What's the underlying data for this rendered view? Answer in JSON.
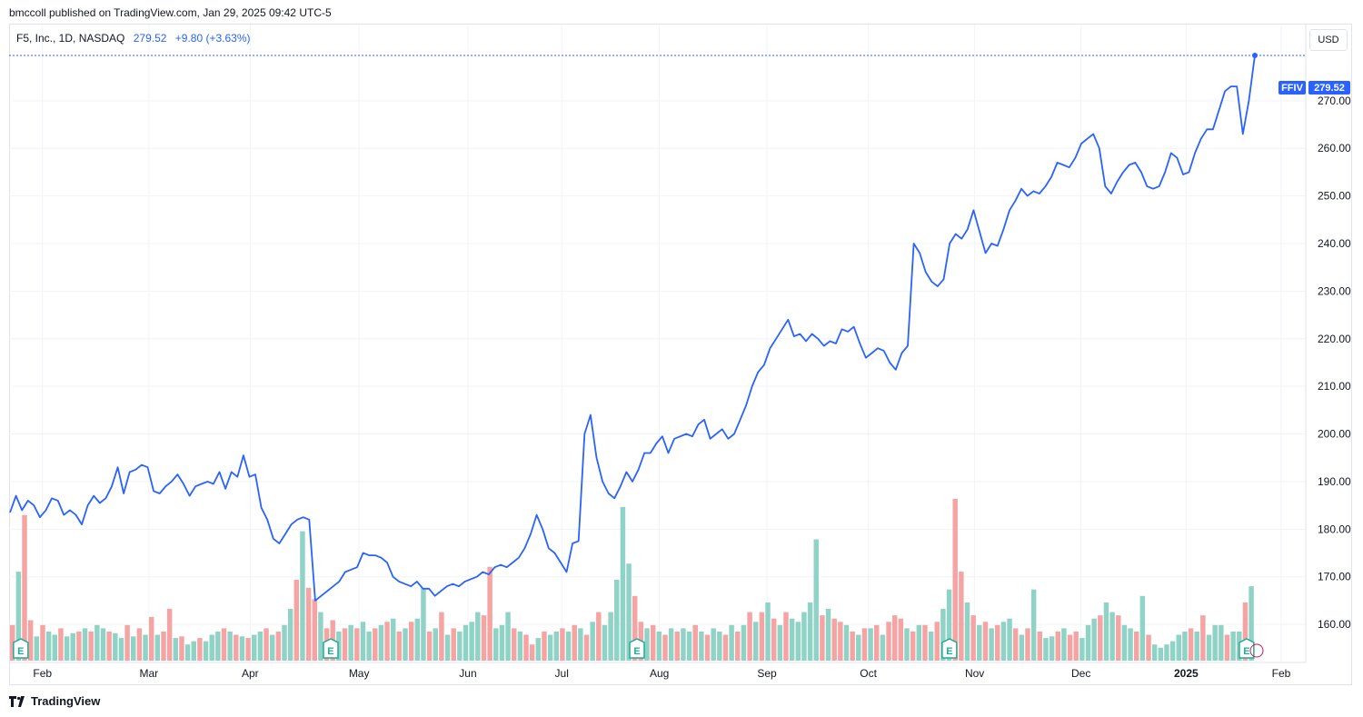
{
  "header": {
    "published": "bmccoll published on TradingView.com, Jan 29, 2025 09:42 UTC-5"
  },
  "legend": {
    "symbol_info": "F5, Inc., 1D, NASDAQ",
    "price": "279.52",
    "change": "+9.80 (+3.63%)"
  },
  "currency_button": "USD",
  "price_label": {
    "ticker": "FFIV",
    "value": "279.52"
  },
  "footer": {
    "brand": "TradingView"
  },
  "earnings_marker": "E",
  "colors": {
    "line": "#2962ff",
    "volume_up": "#8fd3c6",
    "volume_down": "#f5a3a3",
    "grid": "#f0f3fa",
    "earnings": "#22ab94"
  },
  "chart_data": {
    "type": "line",
    "title": "F5, Inc., 1D, NASDAQ",
    "series": [
      {
        "name": "FFIV",
        "values": [
          183.5,
          187,
          184,
          186,
          185,
          182.5,
          184,
          186.5,
          186,
          183,
          184,
          183,
          181,
          185,
          187,
          185.5,
          186.5,
          189,
          193,
          187.5,
          192,
          192.5,
          193.5,
          193,
          188,
          187.5,
          189,
          190,
          191.5,
          189.5,
          187,
          189,
          189.5,
          190,
          189.5,
          192,
          188.5,
          192,
          191,
          195.5,
          191,
          191.5,
          184.5,
          182,
          178,
          177,
          179,
          181,
          182,
          182.5,
          182,
          165,
          166,
          167,
          168,
          169,
          171,
          171.5,
          172,
          175,
          174.5,
          174.5,
          174,
          173,
          170,
          169,
          168.5,
          168,
          169,
          167.5,
          167.5,
          166,
          167,
          168,
          168.5,
          168,
          169,
          169.5,
          170,
          171,
          170.5,
          172,
          172.5,
          172,
          173,
          174,
          176,
          179,
          183,
          180,
          176,
          175,
          173,
          171,
          177,
          177.5,
          200,
          204,
          195,
          190,
          187.5,
          186.5,
          189,
          192,
          190,
          192.5,
          196,
          196,
          198,
          199.5,
          196,
          199,
          199.5,
          200,
          199.5,
          202,
          203,
          199,
          200,
          201,
          199,
          200,
          203,
          206,
          210,
          213,
          214.5,
          218,
          220,
          222,
          224,
          220.5,
          221,
          219.5,
          221,
          220,
          218.5,
          219.5,
          219,
          222,
          221.5,
          222.5,
          219,
          216,
          217,
          218,
          217.5,
          215,
          213.5,
          217,
          218.5,
          240,
          238,
          234,
          232,
          231,
          232.5,
          240,
          242,
          241,
          243,
          247,
          242.5,
          238,
          240,
          239.5,
          243,
          247,
          249,
          251.5,
          250,
          251,
          250.5,
          252,
          254,
          257,
          256.5,
          256,
          258,
          261,
          262,
          263,
          260,
          252,
          250.5,
          253,
          255,
          256.5,
          257,
          255,
          252,
          251.5,
          252,
          255,
          259,
          258,
          254.5,
          255,
          259,
          262,
          264,
          264,
          268,
          272,
          273,
          273,
          263,
          270,
          279.52
        ]
      }
    ],
    "volume_bars": [
      {
        "v": 0.22,
        "up": false
      },
      {
        "v": 0.55,
        "up": true
      },
      {
        "v": 0.9,
        "up": false
      },
      {
        "v": 0.25,
        "up": false
      },
      {
        "v": 0.15,
        "up": true
      },
      {
        "v": 0.22,
        "up": false
      },
      {
        "v": 0.18,
        "up": true
      },
      {
        "v": 0.16,
        "up": true
      },
      {
        "v": 0.2,
        "up": false
      },
      {
        "v": 0.15,
        "up": true
      },
      {
        "v": 0.17,
        "up": true
      },
      {
        "v": 0.18,
        "up": false
      },
      {
        "v": 0.2,
        "up": true
      },
      {
        "v": 0.18,
        "up": false
      },
      {
        "v": 0.22,
        "up": true
      },
      {
        "v": 0.2,
        "up": true
      },
      {
        "v": 0.18,
        "up": false
      },
      {
        "v": 0.17,
        "up": true
      },
      {
        "v": 0.14,
        "up": true
      },
      {
        "v": 0.22,
        "up": false
      },
      {
        "v": 0.15,
        "up": true
      },
      {
        "v": 0.2,
        "up": false
      },
      {
        "v": 0.16,
        "up": true
      },
      {
        "v": 0.27,
        "up": false
      },
      {
        "v": 0.16,
        "up": true
      },
      {
        "v": 0.18,
        "up": false
      },
      {
        "v": 0.32,
        "up": false
      },
      {
        "v": 0.14,
        "up": true
      },
      {
        "v": 0.15,
        "up": false
      },
      {
        "v": 0.1,
        "up": true
      },
      {
        "v": 0.12,
        "up": true
      },
      {
        "v": 0.14,
        "up": false
      },
      {
        "v": 0.12,
        "up": true
      },
      {
        "v": 0.16,
        "up": true
      },
      {
        "v": 0.18,
        "up": true
      },
      {
        "v": 0.2,
        "up": false
      },
      {
        "v": 0.18,
        "up": true
      },
      {
        "v": 0.16,
        "up": false
      },
      {
        "v": 0.15,
        "up": true
      },
      {
        "v": 0.14,
        "up": false
      },
      {
        "v": 0.16,
        "up": true
      },
      {
        "v": 0.18,
        "up": true
      },
      {
        "v": 0.2,
        "up": false
      },
      {
        "v": 0.16,
        "up": true
      },
      {
        "v": 0.18,
        "up": false
      },
      {
        "v": 0.22,
        "up": true
      },
      {
        "v": 0.32,
        "up": true
      },
      {
        "v": 0.5,
        "up": false
      },
      {
        "v": 0.8,
        "up": true
      },
      {
        "v": 0.45,
        "up": false
      },
      {
        "v": 0.38,
        "up": false
      },
      {
        "v": 0.3,
        "up": true
      },
      {
        "v": 0.2,
        "up": false
      },
      {
        "v": 0.25,
        "up": false
      },
      {
        "v": 0.18,
        "up": true
      },
      {
        "v": 0.2,
        "up": false
      },
      {
        "v": 0.22,
        "up": true
      },
      {
        "v": 0.2,
        "up": false
      },
      {
        "v": 0.24,
        "up": true
      },
      {
        "v": 0.18,
        "up": true
      },
      {
        "v": 0.2,
        "up": false
      },
      {
        "v": 0.22,
        "up": true
      },
      {
        "v": 0.24,
        "up": false
      },
      {
        "v": 0.26,
        "up": true
      },
      {
        "v": 0.18,
        "up": false
      },
      {
        "v": 0.2,
        "up": true
      },
      {
        "v": 0.24,
        "up": false
      },
      {
        "v": 0.26,
        "up": true
      },
      {
        "v": 0.45,
        "up": true
      },
      {
        "v": 0.18,
        "up": false
      },
      {
        "v": 0.2,
        "up": true
      },
      {
        "v": 0.3,
        "up": false
      },
      {
        "v": 0.16,
        "up": true
      },
      {
        "v": 0.2,
        "up": false
      },
      {
        "v": 0.18,
        "up": true
      },
      {
        "v": 0.22,
        "up": true
      },
      {
        "v": 0.24,
        "up": true
      },
      {
        "v": 0.3,
        "up": true
      },
      {
        "v": 0.28,
        "up": false
      },
      {
        "v": 0.58,
        "up": false
      },
      {
        "v": 0.2,
        "up": true
      },
      {
        "v": 0.22,
        "up": true
      },
      {
        "v": 0.3,
        "up": true
      },
      {
        "v": 0.2,
        "up": false
      },
      {
        "v": 0.18,
        "up": true
      },
      {
        "v": 0.16,
        "up": false
      },
      {
        "v": 0.1,
        "up": false
      },
      {
        "v": 0.14,
        "up": true
      },
      {
        "v": 0.18,
        "up": false
      },
      {
        "v": 0.16,
        "up": true
      },
      {
        "v": 0.18,
        "up": true
      },
      {
        "v": 0.2,
        "up": false
      },
      {
        "v": 0.18,
        "up": true
      },
      {
        "v": 0.22,
        "up": false
      },
      {
        "v": 0.2,
        "up": true
      },
      {
        "v": 0.16,
        "up": false
      },
      {
        "v": 0.24,
        "up": true
      },
      {
        "v": 0.3,
        "up": false
      },
      {
        "v": 0.22,
        "up": true
      },
      {
        "v": 0.3,
        "up": true
      },
      {
        "v": 0.5,
        "up": true
      },
      {
        "v": 0.95,
        "up": true
      },
      {
        "v": 0.6,
        "up": true
      },
      {
        "v": 0.4,
        "up": false
      },
      {
        "v": 0.24,
        "up": false
      },
      {
        "v": 0.2,
        "up": true
      },
      {
        "v": 0.22,
        "up": false
      },
      {
        "v": 0.18,
        "up": true
      },
      {
        "v": 0.16,
        "up": false
      },
      {
        "v": 0.2,
        "up": true
      },
      {
        "v": 0.18,
        "up": false
      },
      {
        "v": 0.2,
        "up": true
      },
      {
        "v": 0.18,
        "up": true
      },
      {
        "v": 0.22,
        "up": false
      },
      {
        "v": 0.18,
        "up": true
      },
      {
        "v": 0.16,
        "up": false
      },
      {
        "v": 0.2,
        "up": true
      },
      {
        "v": 0.18,
        "up": true
      },
      {
        "v": 0.16,
        "up": false
      },
      {
        "v": 0.22,
        "up": true
      },
      {
        "v": 0.18,
        "up": false
      },
      {
        "v": 0.22,
        "up": true
      },
      {
        "v": 0.3,
        "up": false
      },
      {
        "v": 0.24,
        "up": true
      },
      {
        "v": 0.3,
        "up": false
      },
      {
        "v": 0.36,
        "up": true
      },
      {
        "v": 0.26,
        "up": false
      },
      {
        "v": 0.22,
        "up": true
      },
      {
        "v": 0.3,
        "up": false
      },
      {
        "v": 0.26,
        "up": true
      },
      {
        "v": 0.24,
        "up": true
      },
      {
        "v": 0.3,
        "up": true
      },
      {
        "v": 0.36,
        "up": true
      },
      {
        "v": 0.75,
        "up": true
      },
      {
        "v": 0.28,
        "up": false
      },
      {
        "v": 0.32,
        "up": true
      },
      {
        "v": 0.26,
        "up": false
      },
      {
        "v": 0.24,
        "up": false
      },
      {
        "v": 0.22,
        "up": true
      },
      {
        "v": 0.18,
        "up": false
      },
      {
        "v": 0.16,
        "up": true
      },
      {
        "v": 0.2,
        "up": false
      },
      {
        "v": 0.2,
        "up": true
      },
      {
        "v": 0.22,
        "up": false
      },
      {
        "v": 0.16,
        "up": true
      },
      {
        "v": 0.24,
        "up": false
      },
      {
        "v": 0.28,
        "up": false
      },
      {
        "v": 0.26,
        "up": false
      },
      {
        "v": 0.2,
        "up": true
      },
      {
        "v": 0.18,
        "up": false
      },
      {
        "v": 0.22,
        "up": true
      },
      {
        "v": 0.22,
        "up": false
      },
      {
        "v": 0.18,
        "up": true
      },
      {
        "v": 0.24,
        "up": false
      },
      {
        "v": 0.32,
        "up": true
      },
      {
        "v": 0.44,
        "up": true
      },
      {
        "v": 1.0,
        "up": false
      },
      {
        "v": 0.55,
        "up": false
      },
      {
        "v": 0.36,
        "up": true
      },
      {
        "v": 0.28,
        "up": false
      },
      {
        "v": 0.22,
        "up": true
      },
      {
        "v": 0.24,
        "up": false
      },
      {
        "v": 0.2,
        "up": true
      },
      {
        "v": 0.22,
        "up": false
      },
      {
        "v": 0.24,
        "up": true
      },
      {
        "v": 0.26,
        "up": true
      },
      {
        "v": 0.2,
        "up": false
      },
      {
        "v": 0.16,
        "up": true
      },
      {
        "v": 0.2,
        "up": false
      },
      {
        "v": 0.44,
        "up": true
      },
      {
        "v": 0.18,
        "up": false
      },
      {
        "v": 0.14,
        "up": true
      },
      {
        "v": 0.15,
        "up": true
      },
      {
        "v": 0.18,
        "up": false
      },
      {
        "v": 0.2,
        "up": true
      },
      {
        "v": 0.16,
        "up": false
      },
      {
        "v": 0.18,
        "up": false
      },
      {
        "v": 0.14,
        "up": true
      },
      {
        "v": 0.22,
        "up": true
      },
      {
        "v": 0.26,
        "up": true
      },
      {
        "v": 0.28,
        "up": false
      },
      {
        "v": 0.36,
        "up": true
      },
      {
        "v": 0.3,
        "up": true
      },
      {
        "v": 0.28,
        "up": false
      },
      {
        "v": 0.22,
        "up": true
      },
      {
        "v": 0.2,
        "up": true
      },
      {
        "v": 0.18,
        "up": false
      },
      {
        "v": 0.4,
        "up": true
      },
      {
        "v": 0.16,
        "up": false
      },
      {
        "v": 0.1,
        "up": true
      },
      {
        "v": 0.08,
        "up": true
      },
      {
        "v": 0.1,
        "up": true
      },
      {
        "v": 0.12,
        "up": true
      },
      {
        "v": 0.16,
        "up": true
      },
      {
        "v": 0.18,
        "up": true
      },
      {
        "v": 0.2,
        "up": false
      },
      {
        "v": 0.18,
        "up": true
      },
      {
        "v": 0.28,
        "up": false
      },
      {
        "v": 0.16,
        "up": true
      },
      {
        "v": 0.22,
        "up": true
      },
      {
        "v": 0.22,
        "up": true
      },
      {
        "v": 0.16,
        "up": false
      },
      {
        "v": 0.18,
        "up": true
      },
      {
        "v": 0.18,
        "up": true
      },
      {
        "v": 0.36,
        "up": false
      },
      {
        "v": 0.46,
        "up": true
      }
    ],
    "earnings_marker_months": [
      "Feb",
      "May",
      "Aug",
      "Nov",
      "Feb"
    ],
    "x_tick_labels": [
      "Feb",
      "Mar",
      "Apr",
      "May",
      "Jun",
      "Jul",
      "Aug",
      "Sep",
      "Oct",
      "Nov",
      "Dec",
      "2025",
      "Feb"
    ],
    "y_tick_labels": [
      "160.00",
      "170.00",
      "180.00",
      "190.00",
      "200.00",
      "210.00",
      "220.00",
      "230.00",
      "240.00",
      "250.00",
      "260.00",
      "270.00"
    ],
    "ylim": [
      152,
      286
    ],
    "grid": true,
    "last_value": 279.52
  }
}
